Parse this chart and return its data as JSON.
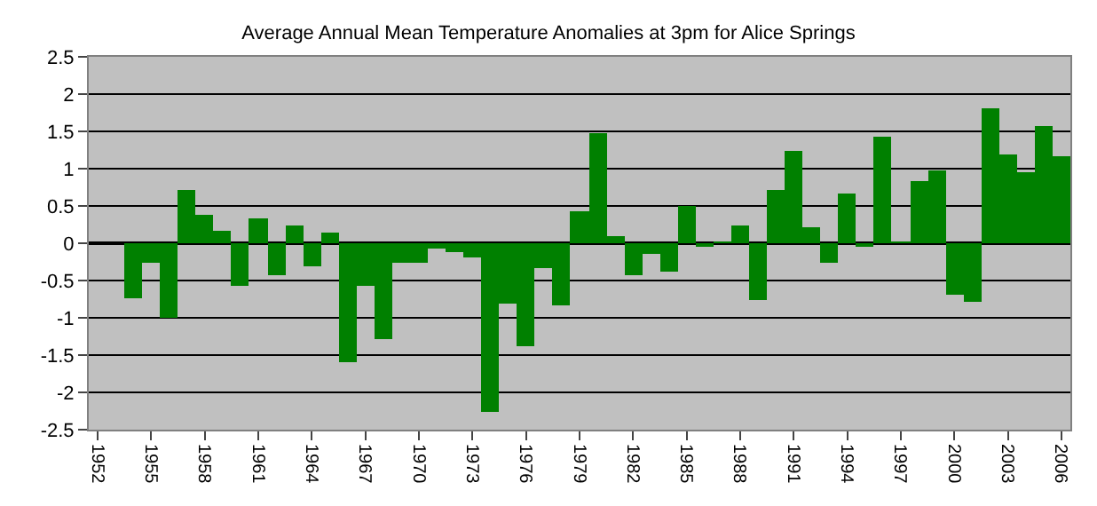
{
  "chart_data": {
    "type": "bar",
    "title": "Average Annual Mean Temperature Anomalies at 3pm for Alice Springs",
    "categories": [
      "1952",
      null,
      null,
      "1955",
      null,
      null,
      "1958",
      null,
      null,
      "1961",
      null,
      null,
      "1964",
      null,
      null,
      "1967",
      null,
      null,
      "1970",
      null,
      null,
      "1973",
      null,
      null,
      "1976",
      null,
      null,
      "1979",
      null,
      null,
      "1982",
      null,
      null,
      "1985",
      null,
      null,
      "1988",
      null,
      null,
      "1991",
      null,
      null,
      "1994",
      null,
      null,
      "1997",
      null,
      null,
      "2000",
      null,
      null,
      "2003",
      null,
      null,
      "2006"
    ],
    "values": [
      0,
      0,
      -0.74,
      -0.26,
      -1.0,
      0.72,
      0.39,
      0.17,
      -0.58,
      0.34,
      -0.43,
      0.24,
      -0.31,
      0.14,
      -1.59,
      -0.58,
      -1.29,
      -0.25,
      -0.25,
      -0.08,
      -0.12,
      -0.2,
      -2.27,
      -0.81,
      -1.39,
      -0.33,
      -0.83,
      0.44,
      1.48,
      0.09,
      -0.43,
      -0.14,
      -0.39,
      0.51,
      -0.03,
      0.02,
      0.24,
      -0.77,
      0.72,
      1.24,
      0.21,
      -0.26,
      0.67,
      -0.03,
      1.42,
      0.01,
      0.84,
      0.97,
      -0.68,
      -0.79,
      1.8,
      1.19,
      0.95,
      1.57,
      1.17
    ],
    "color": "#008000",
    "ylim": [
      -2.5,
      2.5
    ],
    "yticks": [
      -2.5,
      -2,
      -1.5,
      -1,
      -0.5,
      0,
      0.5,
      1,
      1.5,
      2,
      2.5
    ],
    "grid": "y"
  }
}
